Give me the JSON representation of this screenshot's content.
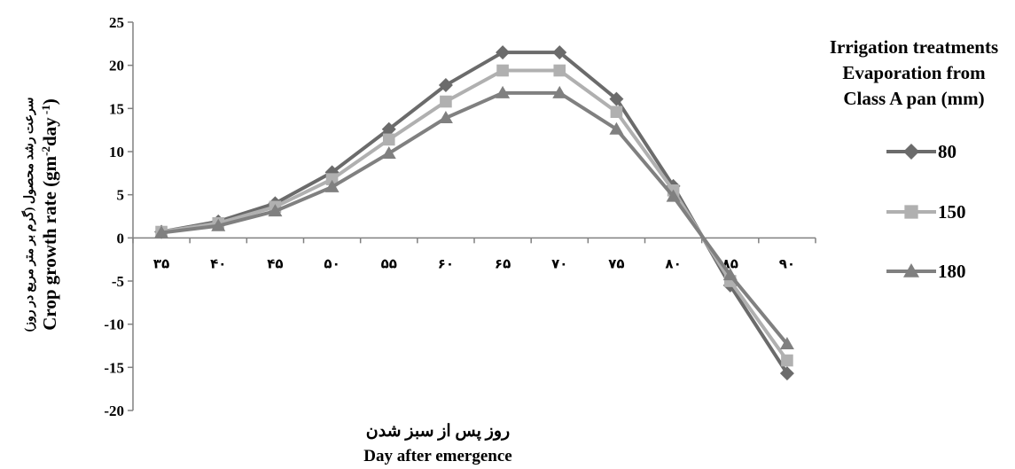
{
  "chart_data": {
    "type": "line",
    "x": [
      35,
      40,
      45,
      50,
      55,
      60,
      65,
      70,
      75,
      80,
      85,
      90
    ],
    "x_tick_labels": [
      "۳۵",
      "۴۰",
      "۴۵",
      "۵۰",
      "۵۵",
      "۶۰",
      "۶۵",
      "۷۰",
      "۷۵",
      "۸۰",
      "۸۵",
      "۹۰"
    ],
    "xlabel_fa": "روز پس از سبز شدن",
    "xlabel_en": "Day after emergence",
    "ylabel_fa": "سرعت رشد محصول (گرم بر متر مربع در روز)",
    "ylabel_en": "Crop growth rate (gm-2day-1)",
    "ylim": [
      -20,
      25
    ],
    "y_ticks": [
      -20,
      -15,
      -10,
      -5,
      0,
      5,
      10,
      15,
      20,
      25
    ],
    "legend_title": [
      "Irrigation treatments",
      "Evaporation from",
      "Class A pan (mm)"
    ],
    "legend_position": "right",
    "grid": false,
    "series": [
      {
        "name": "80",
        "marker": "diamond",
        "color": "#6b6b6b",
        "values": [
          0.7,
          1.9,
          4.0,
          7.6,
          12.6,
          17.7,
          21.5,
          21.5,
          16.1,
          6.0,
          -5.5,
          -15.7
        ]
      },
      {
        "name": "150",
        "marker": "square",
        "color": "#b0b0b0",
        "values": [
          0.7,
          1.7,
          3.6,
          6.8,
          11.4,
          15.8,
          19.4,
          19.4,
          14.6,
          5.5,
          -5.0,
          -14.2
        ]
      },
      {
        "name": "180",
        "marker": "triangle",
        "color": "#808080",
        "values": [
          0.6,
          1.4,
          3.1,
          5.9,
          9.8,
          13.9,
          16.8,
          16.8,
          12.6,
          4.8,
          -4.3,
          -12.3
        ]
      }
    ]
  }
}
